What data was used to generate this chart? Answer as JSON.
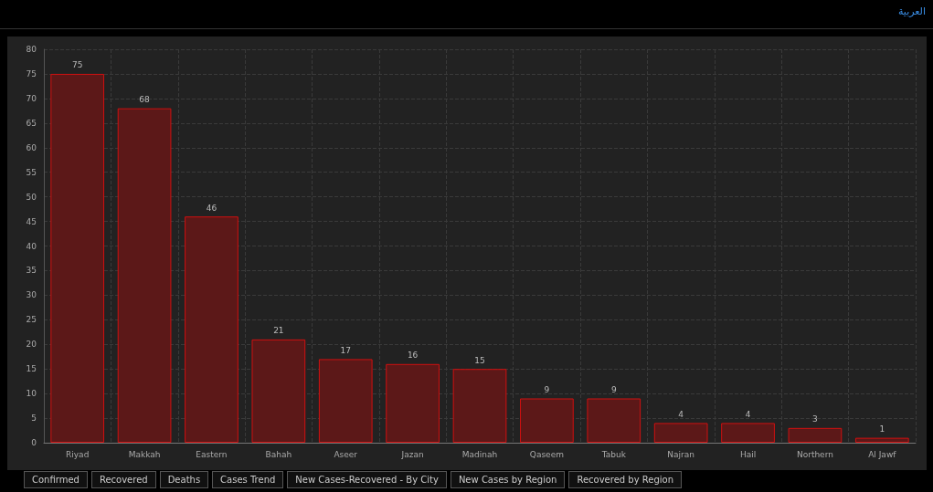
{
  "chart_data": {
    "type": "bar",
    "categories": [
      "Riyad",
      "Makkah",
      "Eastern",
      "Bahah",
      "Aseer",
      "Jazan",
      "Madinah",
      "Qaseem",
      "Tabuk",
      "Najran",
      "Hail",
      "Northern",
      "Al Jawf"
    ],
    "values": [
      75,
      68,
      46,
      21,
      17,
      16,
      15,
      9,
      9,
      4,
      4,
      3,
      1
    ],
    "color": "#5c1818",
    "ylim": [
      0,
      80
    ],
    "yticks": [
      0,
      5,
      10,
      15,
      20,
      25,
      30,
      35,
      40,
      45,
      50,
      55,
      60,
      65,
      70,
      75,
      80
    ],
    "grid": true,
    "data_labels": true,
    "annotations": [
      "العربية",
      "Confirmed",
      "Recovered",
      "Deaths",
      "Cases Trend",
      "New Cases-Recovered - By City",
      "New Cases by Region",
      "Recovered by Region"
    ]
  }
}
